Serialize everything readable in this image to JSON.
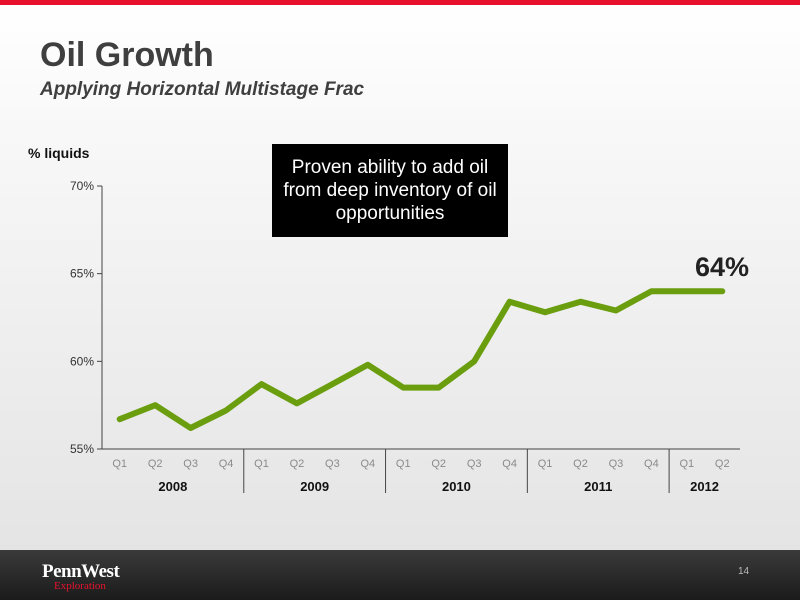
{
  "slide": {
    "title": "Oil Growth",
    "subtitle": "Applying Horizontal Multistage Frac",
    "callout": "Proven ability to add oil from deep inventory of oil opportunities",
    "end_label": "64%",
    "page_number": "14",
    "accent_color": "#e8112d",
    "logo": {
      "name": "PennWest",
      "sub": "Exploration"
    }
  },
  "chart_data": {
    "type": "line",
    "title": "",
    "xlabel": "",
    "ylabel": "% liquids",
    "ylim": [
      55,
      70
    ],
    "yticks": [
      "55%",
      "60%",
      "65%",
      "70%"
    ],
    "ytick_values": [
      55,
      60,
      65,
      70
    ],
    "categories": [
      "Q1",
      "Q2",
      "Q3",
      "Q4",
      "Q1",
      "Q2",
      "Q3",
      "Q4",
      "Q1",
      "Q2",
      "Q3",
      "Q4",
      "Q1",
      "Q2",
      "Q3",
      "Q4",
      "Q1",
      "Q2"
    ],
    "groups": [
      {
        "label": "2008",
        "count": 4
      },
      {
        "label": "2009",
        "count": 4
      },
      {
        "label": "2010",
        "count": 4
      },
      {
        "label": "2011",
        "count": 4
      },
      {
        "label": "2012",
        "count": 2
      }
    ],
    "series": [
      {
        "values": [
          56.7,
          57.5,
          56.2,
          57.2,
          58.7,
          57.6,
          58.7,
          59.8,
          58.5,
          58.5,
          60.0,
          63.4,
          62.8,
          63.4,
          62.9,
          64.0,
          64.0,
          64.0
        ],
        "color": "#6a9e0f"
      }
    ],
    "grid": false,
    "legend": "none"
  }
}
